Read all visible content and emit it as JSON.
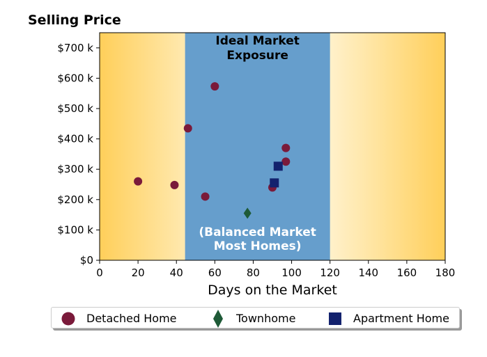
{
  "chart_data": {
    "type": "scatter",
    "title": "Selling Price",
    "xlabel": "Days on the Market",
    "ylabel": "",
    "xlim": [
      0,
      180
    ],
    "ylim": [
      0,
      750000
    ],
    "x_ticks": [
      0,
      20,
      40,
      60,
      80,
      100,
      120,
      140,
      160,
      180
    ],
    "x_tick_labels": [
      "0",
      "20",
      "40",
      "60",
      "80",
      "100",
      "120",
      "140",
      "160",
      "180"
    ],
    "y_ticks": [
      0,
      100000,
      200000,
      300000,
      400000,
      500000,
      600000,
      700000
    ],
    "y_tick_labels": [
      "$0",
      "$100 k",
      "$200 k",
      "$300 k",
      "$400 k",
      "$500 k",
      "$600 k",
      "$700 k"
    ],
    "grid": false,
    "legend_position": "bottom",
    "highlight_band": {
      "x_range": [
        44.5,
        120
      ],
      "color": "#669ecc",
      "label_top": [
        "Ideal Market",
        "Exposure"
      ],
      "label_bottom": [
        "(Balanced Market",
        "Most Homes)"
      ]
    },
    "background_gradient": {
      "edge_color": "#ffcf5a",
      "center_color": "#ffffff"
    },
    "series": [
      {
        "name": "Detached Home",
        "marker": "circle",
        "color": "#7a1a3a",
        "points": [
          {
            "x": 20,
            "y": 260000
          },
          {
            "x": 39,
            "y": 248000
          },
          {
            "x": 46,
            "y": 435000
          },
          {
            "x": 55,
            "y": 210000
          },
          {
            "x": 60,
            "y": 573000
          },
          {
            "x": 90,
            "y": 240000
          },
          {
            "x": 97,
            "y": 370000
          },
          {
            "x": 97,
            "y": 325000
          }
        ]
      },
      {
        "name": "Townhome",
        "marker": "diamond",
        "color": "#1e5a37",
        "points": [
          {
            "x": 77,
            "y": 155000
          }
        ]
      },
      {
        "name": "Apartment Home",
        "marker": "square",
        "color": "#13226e",
        "points": [
          {
            "x": 91,
            "y": 255000
          },
          {
            "x": 93,
            "y": 310000
          }
        ]
      }
    ]
  }
}
